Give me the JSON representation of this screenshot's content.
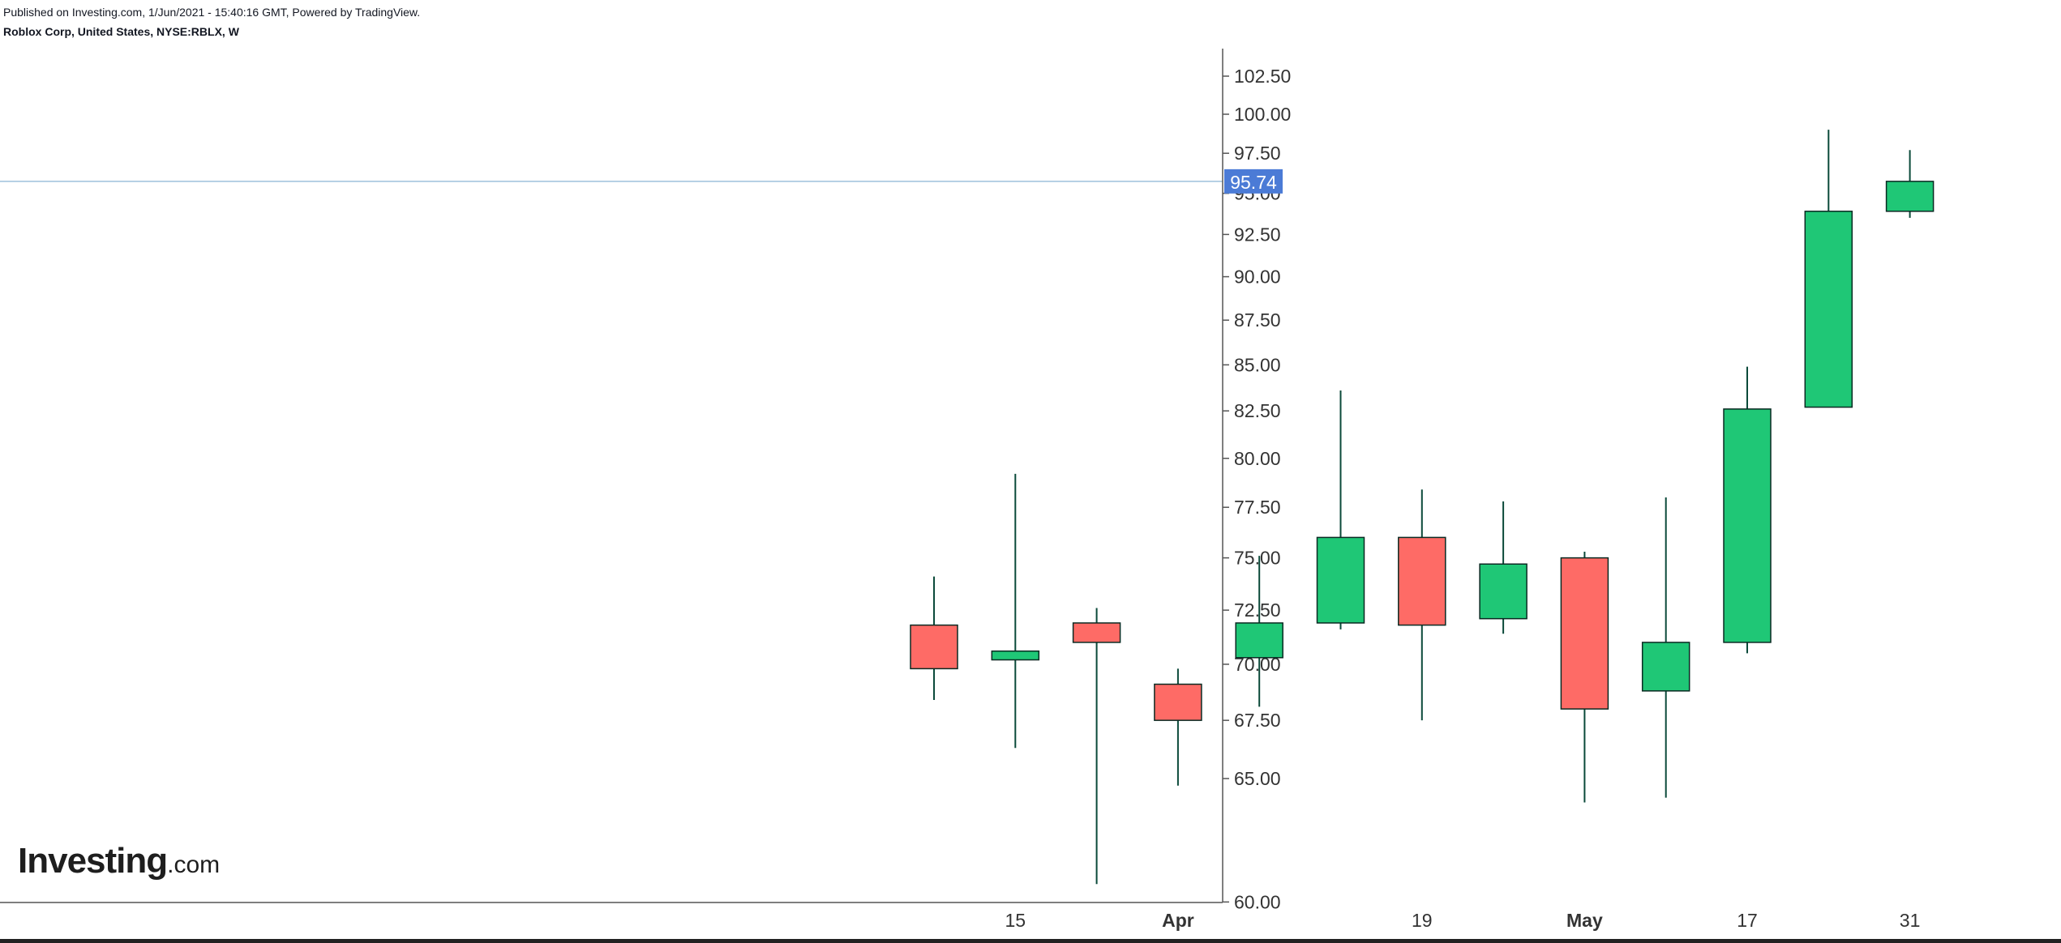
{
  "header": {
    "published": "Published on Investing.com, 1/Jun/2021 - 15:40:16 GMT, Powered by TradingView.",
    "symbol": "Roblox Corp, United States, NYSE:RBLX, W"
  },
  "logo": {
    "brand": "Investing",
    "tld": ".com"
  },
  "colors": {
    "up": "#1fc776",
    "down": "#fe6b66",
    "outline": "#0a2a22",
    "wick": "#0b4a3a",
    "price_line": "#9ec0dc",
    "price_badge": "#4b7bd6",
    "axis_text": "#333333",
    "axis_line": "#555555"
  },
  "chart_data": {
    "type": "candlestick",
    "interval": "W",
    "y_axis": {
      "scale": "log",
      "position": "right",
      "ticks": [
        102.5,
        100.0,
        97.5,
        95.0,
        92.5,
        90.0,
        87.5,
        85.0,
        82.5,
        80.0,
        77.5,
        75.0,
        72.5,
        70.0,
        67.5,
        65.0,
        60.0
      ],
      "tick_labels": [
        "102.50",
        "100.00",
        "97.50",
        "95.00",
        "92.50",
        "90.00",
        "87.50",
        "85.00",
        "82.50",
        "80.00",
        "77.50",
        "75.00",
        "72.50",
        "70.00",
        "67.50",
        "65.00",
        "60.00"
      ]
    },
    "x_axis": {
      "labels": [
        {
          "text": "15",
          "bold": false,
          "week": "2021-03-15"
        },
        {
          "text": "Apr",
          "bold": true,
          "week": "2021-03-29"
        },
        {
          "text": "19",
          "bold": false,
          "week": "2021-04-19"
        },
        {
          "text": "May",
          "bold": true,
          "week": "2021-05-03"
        },
        {
          "text": "17",
          "bold": false,
          "week": "2021-05-17"
        },
        {
          "text": "31",
          "bold": false,
          "week": "2021-05-31"
        }
      ]
    },
    "candles": [
      {
        "week": "2021-03-08",
        "open": 71.8,
        "high": 74.1,
        "low": 68.4,
        "close": 69.8
      },
      {
        "week": "2021-03-15",
        "open": 70.2,
        "high": 79.2,
        "low": 66.3,
        "close": 70.6
      },
      {
        "week": "2021-03-22",
        "open": 71.9,
        "high": 72.6,
        "low": 60.7,
        "close": 71.0
      },
      {
        "week": "2021-03-29",
        "open": 69.1,
        "high": 69.8,
        "low": 64.7,
        "close": 67.5
      },
      {
        "week": "2021-04-05",
        "open": 70.3,
        "high": 75.1,
        "low": 68.1,
        "close": 71.9
      },
      {
        "week": "2021-04-12",
        "open": 71.9,
        "high": 83.6,
        "low": 71.6,
        "close": 76.0
      },
      {
        "week": "2021-04-19",
        "open": 76.0,
        "high": 78.4,
        "low": 67.5,
        "close": 71.8
      },
      {
        "week": "2021-04-26",
        "open": 72.1,
        "high": 77.8,
        "low": 71.4,
        "close": 74.7
      },
      {
        "week": "2021-05-03",
        "open": 75.0,
        "high": 75.3,
        "low": 64.0,
        "close": 68.0
      },
      {
        "week": "2021-05-10",
        "open": 68.8,
        "high": 78.0,
        "low": 64.2,
        "close": 71.0
      },
      {
        "week": "2021-05-17",
        "open": 71.0,
        "high": 84.9,
        "low": 70.5,
        "close": 82.6
      },
      {
        "week": "2021-05-24",
        "open": 82.7,
        "high": 99.0,
        "low": 82.7,
        "close": 93.9
      },
      {
        "week": "2021-05-31",
        "open": 93.9,
        "high": 97.7,
        "low": 93.5,
        "close": 95.74
      }
    ],
    "last_price": 95.74,
    "last_price_label": "95.74"
  }
}
